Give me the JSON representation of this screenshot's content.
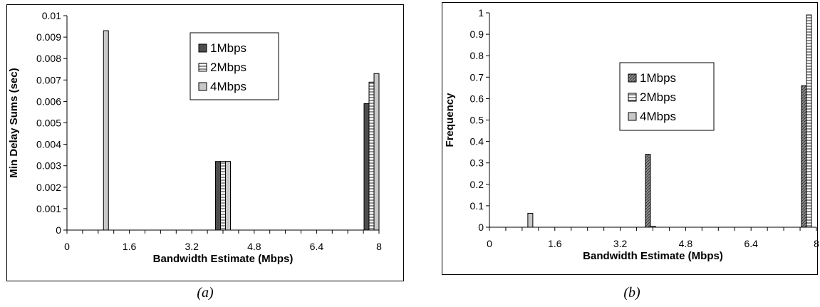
{
  "chart_data": [
    {
      "type": "bar",
      "panel_caption": "(a)",
      "ylabel": "Min Delay Sums (sec)",
      "xlabel": "Bandwidth Estimate (Mbps)",
      "ylim": [
        0,
        0.01
      ],
      "yticks": [
        "0",
        "0.001",
        "0.002",
        "0.003",
        "0.004",
        "0.005",
        "0.006",
        "0.007",
        "0.008",
        "0.009",
        "0.01"
      ],
      "xlim": [
        0,
        8
      ],
      "xticks": [
        "0",
        "1.6",
        "3.2",
        "4.8",
        "6.4",
        "8"
      ],
      "legend_position": "top-center",
      "series": [
        {
          "name": "1Mbps",
          "pattern": "dark",
          "x": [
            4,
            8
          ],
          "values": [
            0.0032,
            0.0059
          ]
        },
        {
          "name": "2Mbps",
          "pattern": "hstripe",
          "x": [
            4,
            8
          ],
          "values": [
            0.0032,
            0.0069
          ]
        },
        {
          "name": "4Mbps",
          "pattern": "light",
          "x": [
            1,
            4,
            8
          ],
          "values": [
            0.0093,
            0.0032,
            0.0073
          ]
        }
      ]
    },
    {
      "type": "bar",
      "panel_caption": "(b)",
      "ylabel": "Frequency",
      "xlabel": "Bandwidth Estimate (Mbps)",
      "ylim": [
        0,
        1
      ],
      "yticks": [
        "0",
        "0.1",
        "0.2",
        "0.3",
        "0.4",
        "0.5",
        "0.6",
        "0.7",
        "0.8",
        "0.9",
        "1"
      ],
      "xlim": [
        0,
        8
      ],
      "xticks": [
        "0",
        "1.6",
        "3.2",
        "4.8",
        "6.4",
        "8"
      ],
      "legend_position": "center",
      "series": [
        {
          "name": "1Mbps",
          "pattern": "diag",
          "x": [
            4,
            8
          ],
          "values": [
            0.34,
            0.66
          ]
        },
        {
          "name": "2Mbps",
          "pattern": "hstripe",
          "x": [
            4,
            8
          ],
          "values": [
            0.005,
            0.99
          ]
        },
        {
          "name": "4Mbps",
          "pattern": "light",
          "x": [
            1
          ],
          "values": [
            0.065
          ]
        }
      ]
    }
  ]
}
